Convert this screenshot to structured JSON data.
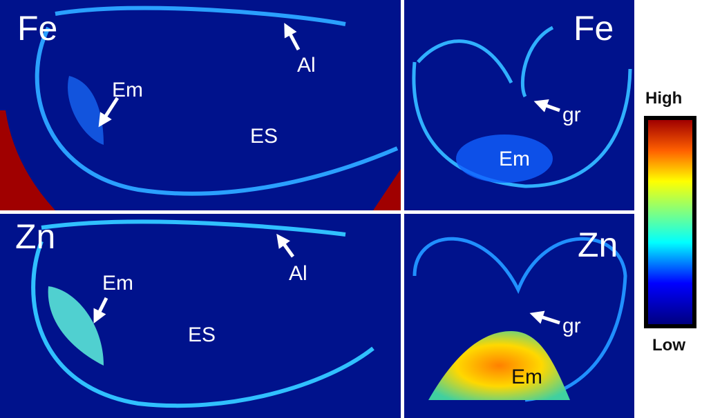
{
  "panels": [
    {
      "element": "Fe",
      "labels": [
        "Al",
        "Em",
        "ES"
      ]
    },
    {
      "element": "Fe",
      "labels": [
        "gr",
        "Em"
      ]
    },
    {
      "element": "Zn",
      "labels": [
        "Al",
        "Em",
        "ES"
      ]
    },
    {
      "element": "Zn",
      "labels": [
        "gr",
        "Em"
      ]
    }
  ],
  "colorbar": {
    "high": "High",
    "low": "Low"
  }
}
